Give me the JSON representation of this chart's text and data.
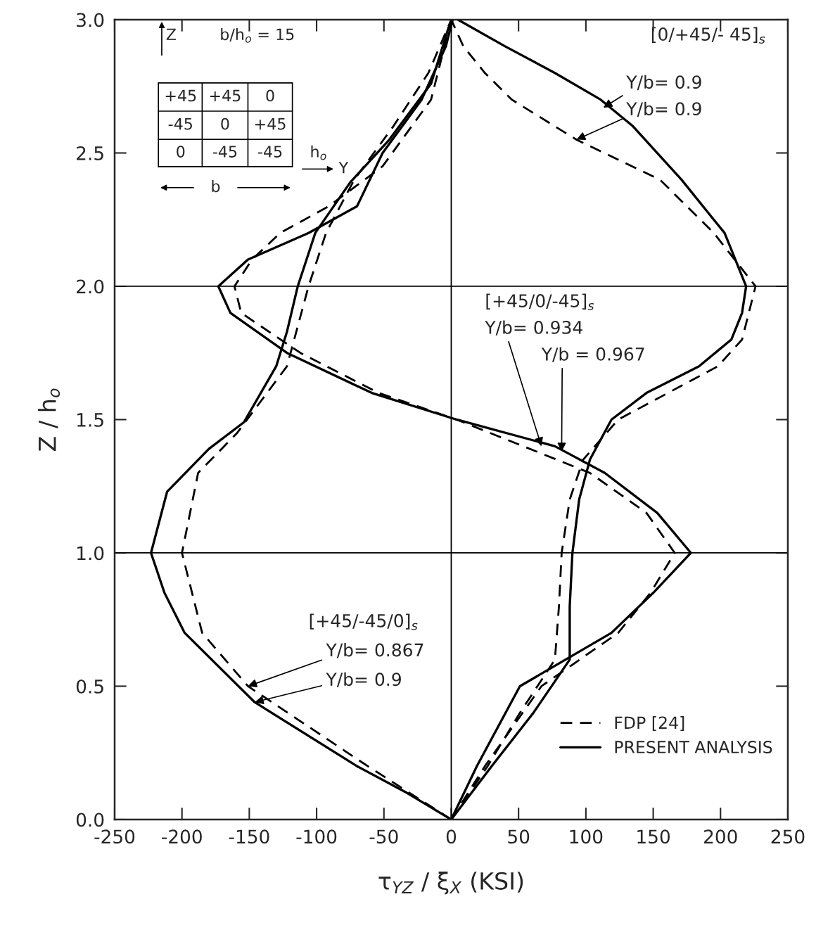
{
  "chart_data": {
    "type": "line",
    "xlabel": "τ$_{YZ}$ / ξ$_{X}$ (KSI)",
    "ylabel": "Z / h$_{o}$",
    "xlim": [
      -250,
      250
    ],
    "xticks": [
      -250,
      -200,
      -150,
      -100,
      -50,
      0,
      50,
      100,
      150,
      200,
      250
    ],
    "ylim": [
      0,
      3
    ],
    "yticks": [
      {
        "value": 0,
        "label": "0.0"
      },
      {
        "value": 0.5,
        "label": "0.5"
      },
      {
        "value": 1,
        "label": "1.0"
      },
      {
        "value": 1.5,
        "label": "1.5"
      },
      {
        "value": 2,
        "label": "2.0"
      },
      {
        "value": 2.5,
        "label": "2.5"
      },
      {
        "value": 3,
        "label": "3.0"
      }
    ],
    "grid": false,
    "legend": "bottom right",
    "marker": "none",
    "ref_lines": [
      {
        "axis": "y",
        "value": 1
      },
      {
        "axis": "y",
        "value": 2
      },
      {
        "axis": "x",
        "value": 0
      }
    ],
    "series": [
      {
        "name": "FDP [24]",
        "color": "#000000",
        "line_style": "dashed",
        "x": [
          0,
          27,
          51,
          77,
          80,
          82,
          88,
          98,
          124,
          161,
          198,
          216,
          226,
          195,
          155,
          93,
          45,
          25,
          9,
          0
        ],
        "values": [
          0,
          0.2,
          0.4,
          0.6,
          0.8,
          1.0,
          1.2,
          1.35,
          1.5,
          1.6,
          1.7,
          1.8,
          2.0,
          2.2,
          2.4,
          2.55,
          2.7,
          2.8,
          2.9,
          3.0
        ]
      },
      {
        "name": "PRESENT ANALYSIS",
        "color": "#000000",
        "line_style": "solid",
        "x": [
          0,
          30,
          61,
          88,
          88,
          90,
          95,
          103,
          119,
          145,
          184,
          208,
          216,
          219,
          203,
          171,
          135,
          111,
          77,
          40,
          5
        ],
        "values": [
          0,
          0.2,
          0.4,
          0.6,
          0.8,
          1.0,
          1.2,
          1.35,
          1.5,
          1.6,
          1.7,
          1.8,
          1.9,
          2.0,
          2.2,
          2.4,
          2.6,
          2.7,
          2.8,
          2.9,
          3.0
        ]
      },
      {
        "color": "#000000",
        "line_style": "dashed",
        "x": [
          0,
          25,
          67,
          124,
          148,
          166,
          145,
          103,
          4,
          -54,
          -112,
          -156,
          -161,
          -148,
          -127,
          -91,
          -51,
          -15,
          0
        ],
        "values": [
          0,
          0.2,
          0.5,
          0.7,
          0.85,
          1.0,
          1.15,
          1.3,
          1.5,
          1.6,
          1.75,
          1.9,
          2.0,
          2.1,
          2.2,
          2.3,
          2.45,
          2.7,
          3.0
        ]
      },
      {
        "color": "#000000",
        "line_style": "solid",
        "x": [
          0,
          19,
          51,
          119,
          150,
          178,
          153,
          114,
          77,
          4,
          -59,
          -122,
          -164,
          -173,
          -151,
          -106,
          -70,
          -51,
          -22,
          -4,
          1
        ],
        "values": [
          0,
          0.2,
          0.5,
          0.7,
          0.85,
          1.0,
          1.15,
          1.3,
          1.4,
          1.5,
          1.6,
          1.75,
          1.9,
          2.0,
          2.1,
          2.2,
          2.3,
          2.5,
          2.7,
          2.9,
          3.0
        ]
      },
      {
        "color": "#000000",
        "line_style": "dashed",
        "x": [
          0,
          -62,
          -151,
          -185,
          -200,
          -188,
          -159,
          -122,
          -106,
          -93,
          -72,
          -43,
          -17,
          0
        ],
        "values": [
          0,
          0.2,
          0.5,
          0.7,
          1.0,
          1.3,
          1.45,
          1.7,
          2.0,
          2.2,
          2.4,
          2.6,
          2.8,
          3.0
        ]
      },
      {
        "color": "#000000",
        "line_style": "solid",
        "x": [
          0,
          -33,
          -70,
          -146,
          -198,
          -213,
          -223,
          -211,
          -180,
          -154,
          -130,
          -122,
          -114,
          -101,
          -75,
          -46,
          -15,
          -2,
          1
        ],
        "values": [
          0,
          0.1,
          0.2,
          0.44,
          0.7,
          0.85,
          1.0,
          1.23,
          1.39,
          1.49,
          1.7,
          1.83,
          2.0,
          2.2,
          2.39,
          2.55,
          2.76,
          2.97,
          3.0
        ]
      }
    ],
    "annotations": [
      "Z",
      "b/h$_{o}$ = 15",
      "+45",
      "+45",
      "0",
      "-45",
      "0",
      "+45",
      "0",
      "-45",
      "-45",
      "b",
      "h$_{o}$",
      "Y",
      "[0/+45/- 45]$_{s}$",
      {
        "text": "Y/b= 0.9",
        "x": 113,
        "y": 2.67
      },
      {
        "text": "Y/b= 0.9",
        "x": 93,
        "y": 2.55
      },
      "[+45/0/-45]$_{s}$",
      {
        "text": "Y/b= 0.934",
        "x": 67,
        "y": 1.4
      },
      {
        "text": "Y/b = 0.967",
        "x": 82,
        "y": 1.38
      },
      "[+45/-45/0]$_{s}$",
      {
        "text": "Y/b= 0.867",
        "x": -151,
        "y": 0.5
      },
      {
        "text": "Y/b= 0.9",
        "x": -146,
        "y": 0.44
      }
    ]
  }
}
